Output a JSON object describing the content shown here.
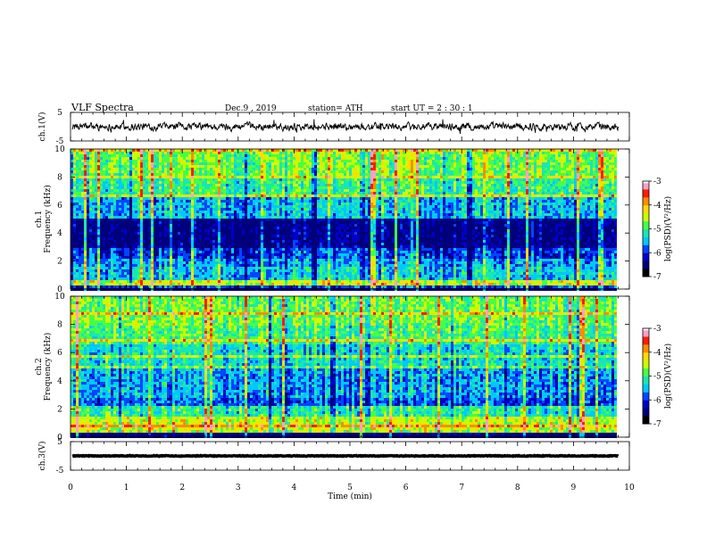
{
  "header": {
    "title": "VLF  Spectra",
    "date": "Dec.9  , 2019",
    "station": "station= ATH",
    "start": "start  UT  =   2  : 30 : 1"
  },
  "colormap": [
    "#000000",
    "#00007a",
    "#0000c8",
    "#0046ff",
    "#00c8ff",
    "#19e6b4",
    "#46ff46",
    "#c8ff00",
    "#ffdc00",
    "#ff8c00",
    "#ff1e00",
    "#ff9ec8",
    "#ffffff"
  ],
  "chart_data": [
    {
      "type": "line",
      "name": "ch1-waveform",
      "ylabel": "ch.1(V)",
      "ylim": [
        -5,
        5
      ],
      "yticks": [
        "5",
        "-5"
      ],
      "xlim": [
        0,
        10
      ],
      "mean_value": 0,
      "noise_amplitude": 1.5,
      "duration_min": 9.8
    },
    {
      "type": "heatmap",
      "name": "ch1-spectrogram",
      "ylabel": "ch.1\nFrequency  (kHz)",
      "ylim": [
        0,
        10
      ],
      "yticks": [
        "0",
        "2",
        "4",
        "6",
        "8",
        "10"
      ],
      "xlim": [
        0,
        10
      ],
      "duration_min": 9.8,
      "colorbar": {
        "label": "log(PSD)(V²/Hz)",
        "range": [
          -7,
          -3
        ],
        "ticks": [
          "-3",
          "-4",
          "-5",
          "-6",
          "-7"
        ]
      },
      "bands_khz_logpsd": [
        [
          0,
          0.25,
          -7
        ],
        [
          0.25,
          0.6,
          -4.5
        ],
        [
          0.6,
          1.5,
          -5.6
        ],
        [
          1.5,
          2.2,
          -5.8
        ],
        [
          2.2,
          3,
          -6.2
        ],
        [
          3,
          5,
          -6.8
        ],
        [
          5,
          6.5,
          -5.7
        ],
        [
          6.5,
          8,
          -5.2
        ],
        [
          8,
          10,
          -4.9
        ]
      ]
    },
    {
      "type": "heatmap",
      "name": "ch2-spectrogram",
      "ylabel": "ch.2\nFrequency  (kHz)",
      "ylim": [
        0,
        10
      ],
      "yticks": [
        "0",
        "2",
        "4",
        "6",
        "8",
        "10"
      ],
      "xlim": [
        0,
        10
      ],
      "duration_min": 9.8,
      "colorbar": {
        "label": "log(PSD)(V²/Hz)",
        "range": [
          -7,
          -3
        ],
        "ticks": [
          "-3",
          "-4",
          "-5",
          "-6",
          "-7"
        ]
      },
      "bands_khz_logpsd": [
        [
          0,
          0.25,
          -7
        ],
        [
          0.25,
          1.5,
          -4.6
        ],
        [
          1.5,
          2.2,
          -5.3
        ],
        [
          2.2,
          2.8,
          -6.1
        ],
        [
          2.8,
          5,
          -5.8
        ],
        [
          5,
          6.5,
          -5.5
        ],
        [
          6.5,
          8,
          -5.1
        ],
        [
          8,
          10,
          -4.9
        ]
      ]
    },
    {
      "type": "line",
      "name": "ch3-waveform",
      "ylabel": "ch.3(V)",
      "ylim": [
        -5,
        5
      ],
      "yticks": [
        "5",
        "-5"
      ],
      "xlim": [
        0,
        10
      ],
      "mean_value": 0,
      "noise_amplitude": 0.15,
      "duration_min": 9.8,
      "xlabel": "Time  (min)",
      "xticks": [
        "0",
        "1",
        "2",
        "3",
        "4",
        "5",
        "6",
        "7",
        "8",
        "9",
        "10"
      ]
    }
  ]
}
